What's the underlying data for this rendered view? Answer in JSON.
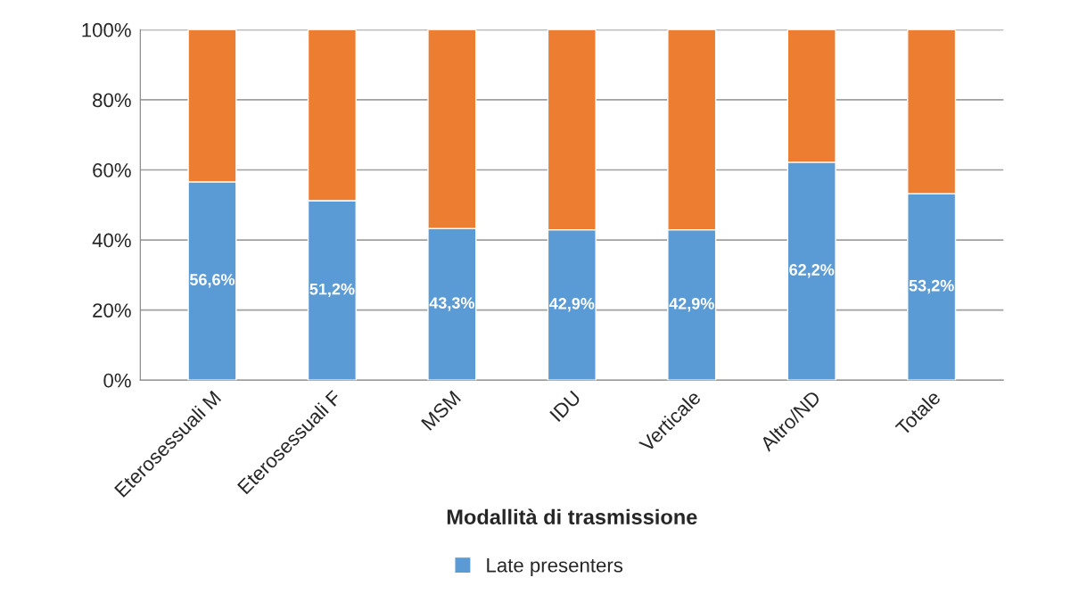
{
  "chart_data": {
    "type": "bar",
    "stacked": true,
    "xlabel": "Modallità di trasmissione",
    "categories": [
      "Eterosessuali M",
      "Eterosessuali F",
      "MSM",
      "IDU",
      "Verticale",
      "Altro/ND",
      "Totale"
    ],
    "series": [
      {
        "name": "Late presenters",
        "color": "#5b9bd5",
        "values": [
          56.6,
          51.2,
          43.3,
          42.9,
          42.9,
          62.2,
          53.2
        ],
        "value_labels": [
          "56,6%",
          "51,2%",
          "43,3%",
          "42,9%",
          "42,9%",
          "62,2%",
          "53,2%"
        ]
      },
      {
        "color": "#ed7d31",
        "values": [
          43.4,
          48.8,
          56.7,
          57.1,
          57.1,
          37.8,
          46.8
        ]
      }
    ],
    "ylim": [
      0,
      100
    ],
    "yticks": [
      {
        "value": 0,
        "label": "0%"
      },
      {
        "value": 20,
        "label": "20%"
      },
      {
        "value": 40,
        "label": "40%"
      },
      {
        "value": 60,
        "label": "60%"
      },
      {
        "value": 80,
        "label": "80%"
      },
      {
        "value": 100,
        "label": "100%"
      }
    ],
    "grid": "y",
    "legend": "bottom"
  }
}
